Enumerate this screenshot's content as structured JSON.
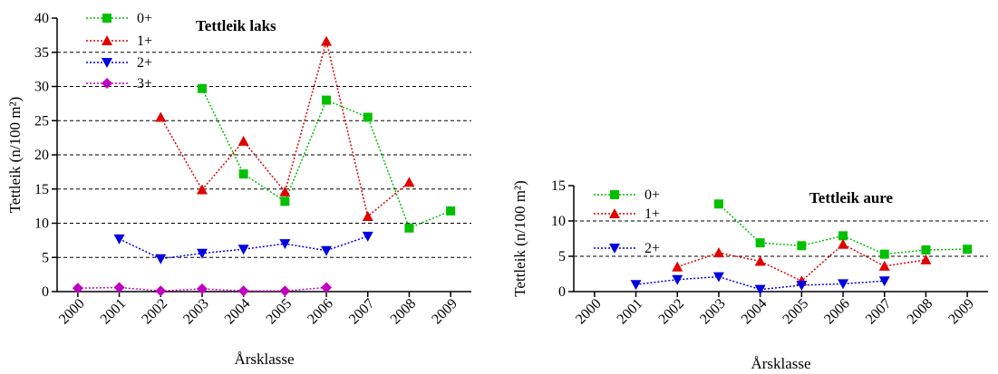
{
  "chart_data": [
    {
      "type": "line",
      "title": "Tettleik laks",
      "xlabel": "Årsklasse",
      "ylabel": "Tettleik (n/100 m²)",
      "categories": [
        "2000",
        "2001",
        "2002",
        "2003",
        "2004",
        "2005",
        "2006",
        "2007",
        "2008",
        "2009"
      ],
      "ylim": [
        0,
        40
      ],
      "yticks": [
        0,
        5,
        10,
        15,
        20,
        25,
        30,
        35,
        40
      ],
      "gridlines": [
        5,
        10,
        15,
        20,
        25,
        30,
        35
      ],
      "legend_position": "top-left",
      "series": [
        {
          "name": "0+",
          "color": "#00c000",
          "marker": "square",
          "values": [
            null,
            null,
            null,
            29.7,
            17.2,
            13.2,
            28.0,
            25.5,
            9.3,
            11.8
          ]
        },
        {
          "name": "1+",
          "color": "#e00000",
          "marker": "triangle-up",
          "values": [
            null,
            null,
            25.5,
            14.9,
            22.0,
            14.6,
            36.6,
            11.0,
            16.0,
            null
          ]
        },
        {
          "name": "2+",
          "color": "#0000e0",
          "marker": "triangle-down",
          "values": [
            null,
            7.7,
            4.8,
            5.6,
            6.2,
            7.0,
            6.0,
            8.1,
            null,
            null
          ]
        },
        {
          "name": "3+",
          "color": "#c000c0",
          "marker": "diamond",
          "values": [
            0.5,
            0.6,
            0.1,
            0.4,
            0.1,
            0.1,
            0.6,
            null,
            null,
            null
          ]
        }
      ]
    },
    {
      "type": "line",
      "title": "Tettleik aure",
      "xlabel": "Årsklasse",
      "ylabel": "Tettleik (n/100 m²)",
      "categories": [
        "2000",
        "2001",
        "2002",
        "2003",
        "2004",
        "2005",
        "2006",
        "2007",
        "2008",
        "2009"
      ],
      "ylim": [
        0,
        15
      ],
      "yticks": [
        0,
        5,
        10,
        15
      ],
      "gridlines": [
        5,
        10
      ],
      "legend_position": "top-left",
      "series": [
        {
          "name": "0+",
          "color": "#00c000",
          "marker": "square",
          "values": [
            null,
            null,
            null,
            12.4,
            6.9,
            6.5,
            7.9,
            5.3,
            5.9,
            6.0
          ]
        },
        {
          "name": "1+",
          "color": "#e00000",
          "marker": "triangle-up",
          "values": [
            null,
            null,
            3.5,
            5.5,
            4.3,
            1.5,
            6.7,
            3.6,
            4.5,
            null
          ]
        },
        {
          "name": "2+",
          "color": "#0000e0",
          "marker": "triangle-down",
          "values": [
            null,
            1.0,
            1.7,
            2.1,
            0.3,
            0.9,
            1.1,
            1.5,
            null,
            null
          ]
        }
      ]
    }
  ]
}
